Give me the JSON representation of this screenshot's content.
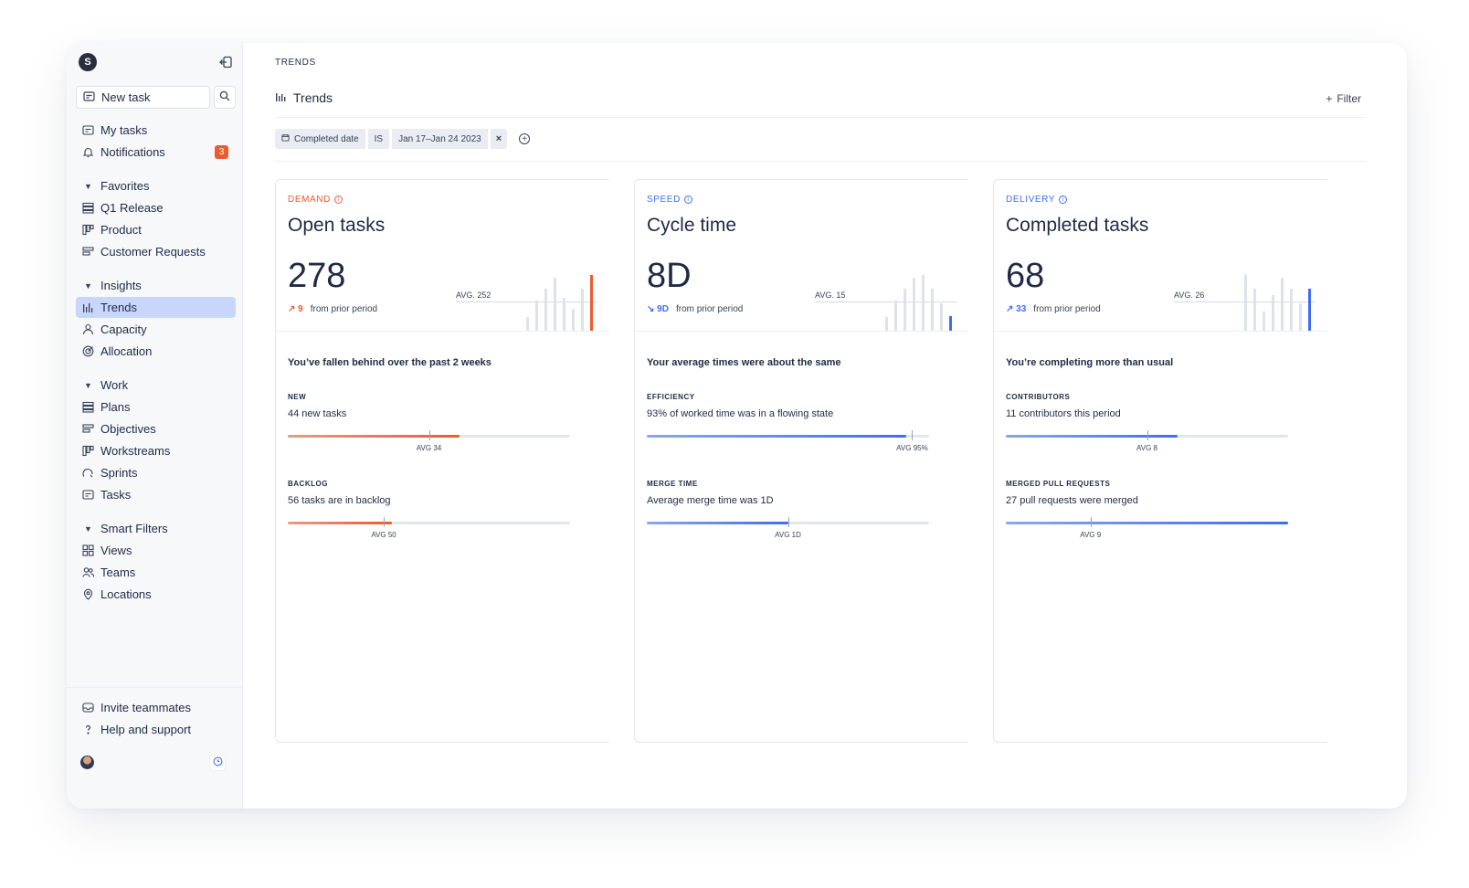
{
  "sidebar": {
    "new_task": "New task",
    "top_items": [
      {
        "label": "My tasks",
        "icon": "tasks-icon"
      },
      {
        "label": "Notifications",
        "icon": "bell-icon",
        "badge": "3"
      }
    ],
    "sections": [
      {
        "label": "Favorites",
        "items": [
          {
            "label": "Q1 Release",
            "icon": "plan-icon"
          },
          {
            "label": "Product",
            "icon": "workstream-icon"
          },
          {
            "label": "Customer Requests",
            "icon": "objective-icon"
          }
        ]
      },
      {
        "label": "Insights",
        "items": [
          {
            "label": "Trends",
            "icon": "bar-chart-icon",
            "active": true
          },
          {
            "label": "Capacity",
            "icon": "person-icon"
          },
          {
            "label": "Allocation",
            "icon": "target-icon"
          }
        ]
      },
      {
        "label": "Work",
        "items": [
          {
            "label": "Plans",
            "icon": "plan-icon"
          },
          {
            "label": "Objectives",
            "icon": "objective-icon"
          },
          {
            "label": "Workstreams",
            "icon": "workstream-icon"
          },
          {
            "label": "Sprints",
            "icon": "sprint-icon"
          },
          {
            "label": "Tasks",
            "icon": "tasks-icon"
          }
        ]
      },
      {
        "label": "Smart Filters",
        "items": [
          {
            "label": "Views",
            "icon": "grid-icon"
          },
          {
            "label": "Teams",
            "icon": "people-icon"
          },
          {
            "label": "Locations",
            "icon": "pin-icon"
          }
        ]
      }
    ],
    "footer": [
      {
        "label": "Invite teammates",
        "icon": "mail-icon"
      },
      {
        "label": "Help and support",
        "icon": "question-icon"
      }
    ]
  },
  "header": {
    "breadcrumb": "TRENDS",
    "title": "Trends",
    "filter_label": "Filter"
  },
  "filter": {
    "field": "Completed date",
    "operator": "IS",
    "value": "Jan 17–Jan 24 2023",
    "remove": "×",
    "add": "+"
  },
  "colors": {
    "demand": "#ee5a2f",
    "speed": "#3f6ef0",
    "delivery": "#3f6ef0",
    "neutral_bar": "#dfe2e8"
  },
  "cards": [
    {
      "category": "DEMAND",
      "accent": "#ee5a2f",
      "title": "Open tasks",
      "value": "278",
      "delta_arrow": "↗",
      "delta": "9",
      "delta_text": "from prior period",
      "avg_label": "AVG. 252",
      "spark": [
        0.25,
        0.55,
        0.75,
        0.95,
        0.6,
        0.4,
        0.75,
        1.0
      ],
      "spark_highlight": 7,
      "spark_avg": 0.5,
      "headline": "You’ve fallen behind over the past 2 weeks",
      "metrics": [
        {
          "label": "NEW",
          "text": "44 new tasks",
          "fill": 0.61,
          "avg_pos": 0.5,
          "avg_label": "AVG 34"
        },
        {
          "label": "BACKLOG",
          "text": "56 tasks are in backlog",
          "fill": 0.37,
          "avg_pos": 0.34,
          "avg_label": "AVG 50"
        }
      ]
    },
    {
      "category": "SPEED",
      "accent": "#3f6ef0",
      "title": "Cycle time",
      "value": "8D",
      "delta_arrow": "↘",
      "delta": "9D",
      "delta_text": "from prior period",
      "avg_label": "AVG. 15",
      "spark": [
        0.25,
        0.55,
        0.75,
        0.95,
        1.0,
        0.75,
        0.5,
        0.28
      ],
      "spark_highlight": 7,
      "spark_avg": 0.5,
      "headline": "Your average times were about the same",
      "metrics": [
        {
          "label": "EFFICIENCY",
          "text": "93% of worked time was in a flowing state",
          "fill": 0.92,
          "avg_pos": 0.94,
          "avg_label": "AVG 95%"
        },
        {
          "label": "MERGE TIME",
          "text": "Average merge time was 1D",
          "fill": 0.5,
          "avg_pos": 0.5,
          "avg_label": "AVG 1D"
        }
      ]
    },
    {
      "category": "DELIVERY",
      "accent": "#3f6ef0",
      "title": "Completed tasks",
      "value": "68",
      "delta_arrow": "↗",
      "delta": "33",
      "delta_text": "from prior period",
      "avg_label": "AVG. 26",
      "spark": [
        1.0,
        0.75,
        0.35,
        0.65,
        0.95,
        0.75,
        0.5,
        0.75
      ],
      "spark_highlight": 7,
      "spark_avg": 0.5,
      "headline": "You’re completing more than usual",
      "metrics": [
        {
          "label": "CONTRIBUTORS",
          "text": "11 contributors this period",
          "fill": 0.61,
          "avg_pos": 0.5,
          "avg_label": "AVG 8"
        },
        {
          "label": "MERGED PULL REQUESTS",
          "text": "27 pull requests were merged",
          "fill": 1.0,
          "avg_pos": 0.3,
          "avg_label": "AVG 9"
        }
      ]
    }
  ]
}
